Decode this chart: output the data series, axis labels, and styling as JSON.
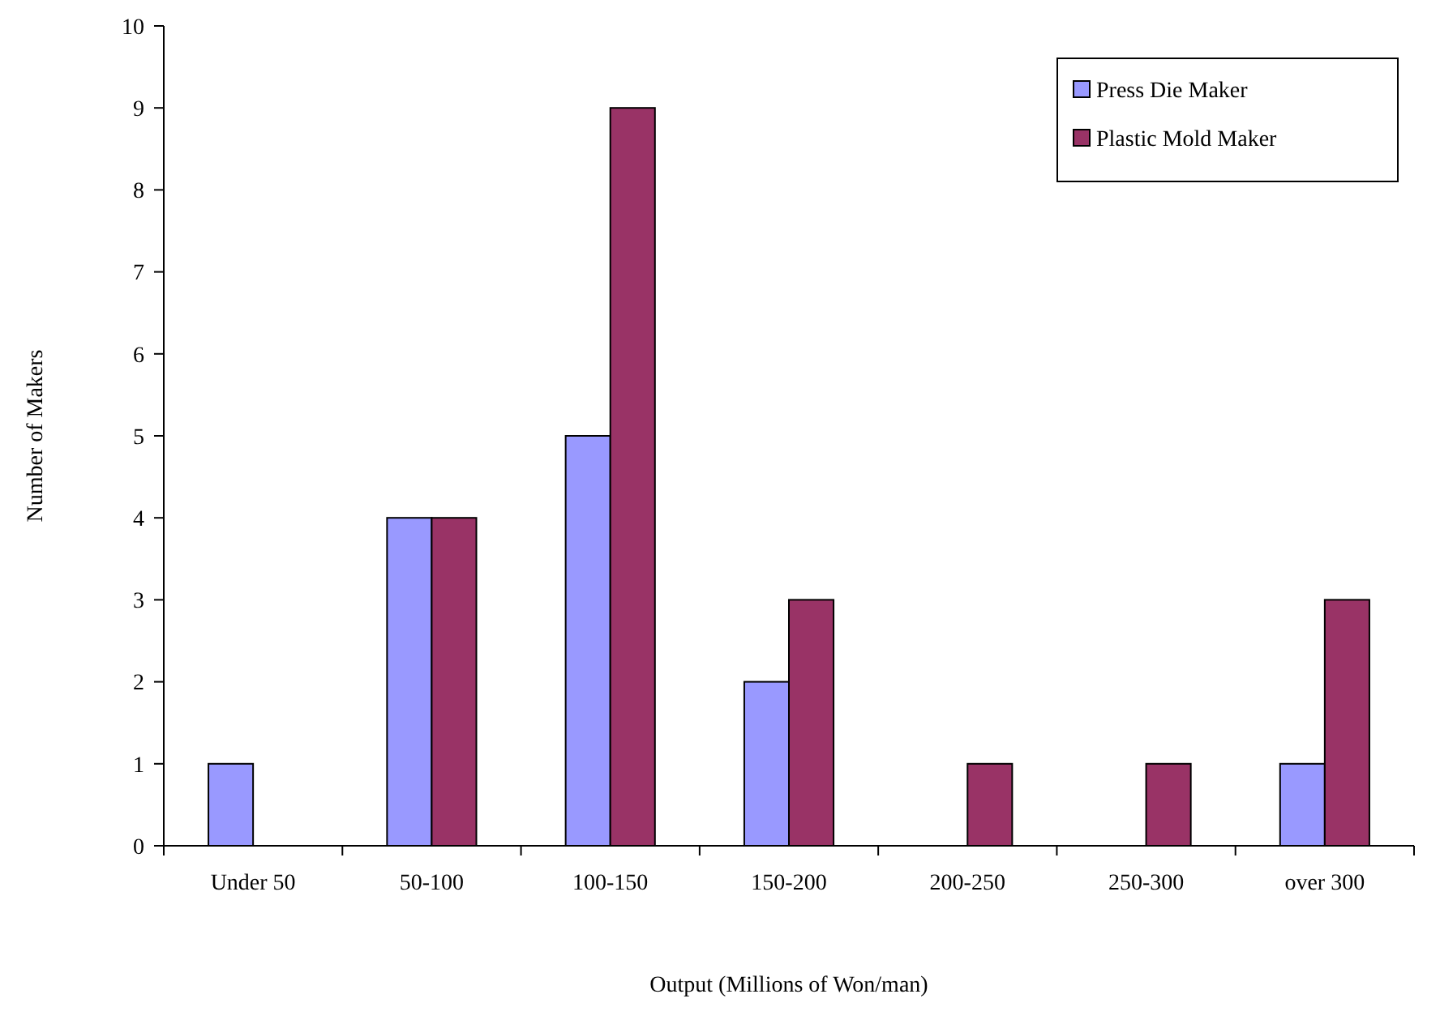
{
  "chart_data": {
    "type": "bar",
    "xlabel": "Output (Millions of Won/man)",
    "ylabel": "Number of Makers",
    "categories": [
      "Under 50",
      "50-100",
      "100-150",
      "150-200",
      "200-250",
      "250-300",
      "over 300"
    ],
    "series": [
      {
        "name": "Press Die Maker",
        "color": "#9999ff",
        "values": [
          1,
          4,
          5,
          2,
          0,
          0,
          1
        ]
      },
      {
        "name": "Plastic Mold Maker",
        "color": "#993366",
        "values": [
          0,
          4,
          9,
          3,
          1,
          1,
          3
        ]
      }
    ],
    "ylim": [
      0,
      10
    ],
    "yticks": [
      0,
      1,
      2,
      3,
      4,
      5,
      6,
      7,
      8,
      9,
      10
    ],
    "grid": false,
    "legend": "top right"
  }
}
